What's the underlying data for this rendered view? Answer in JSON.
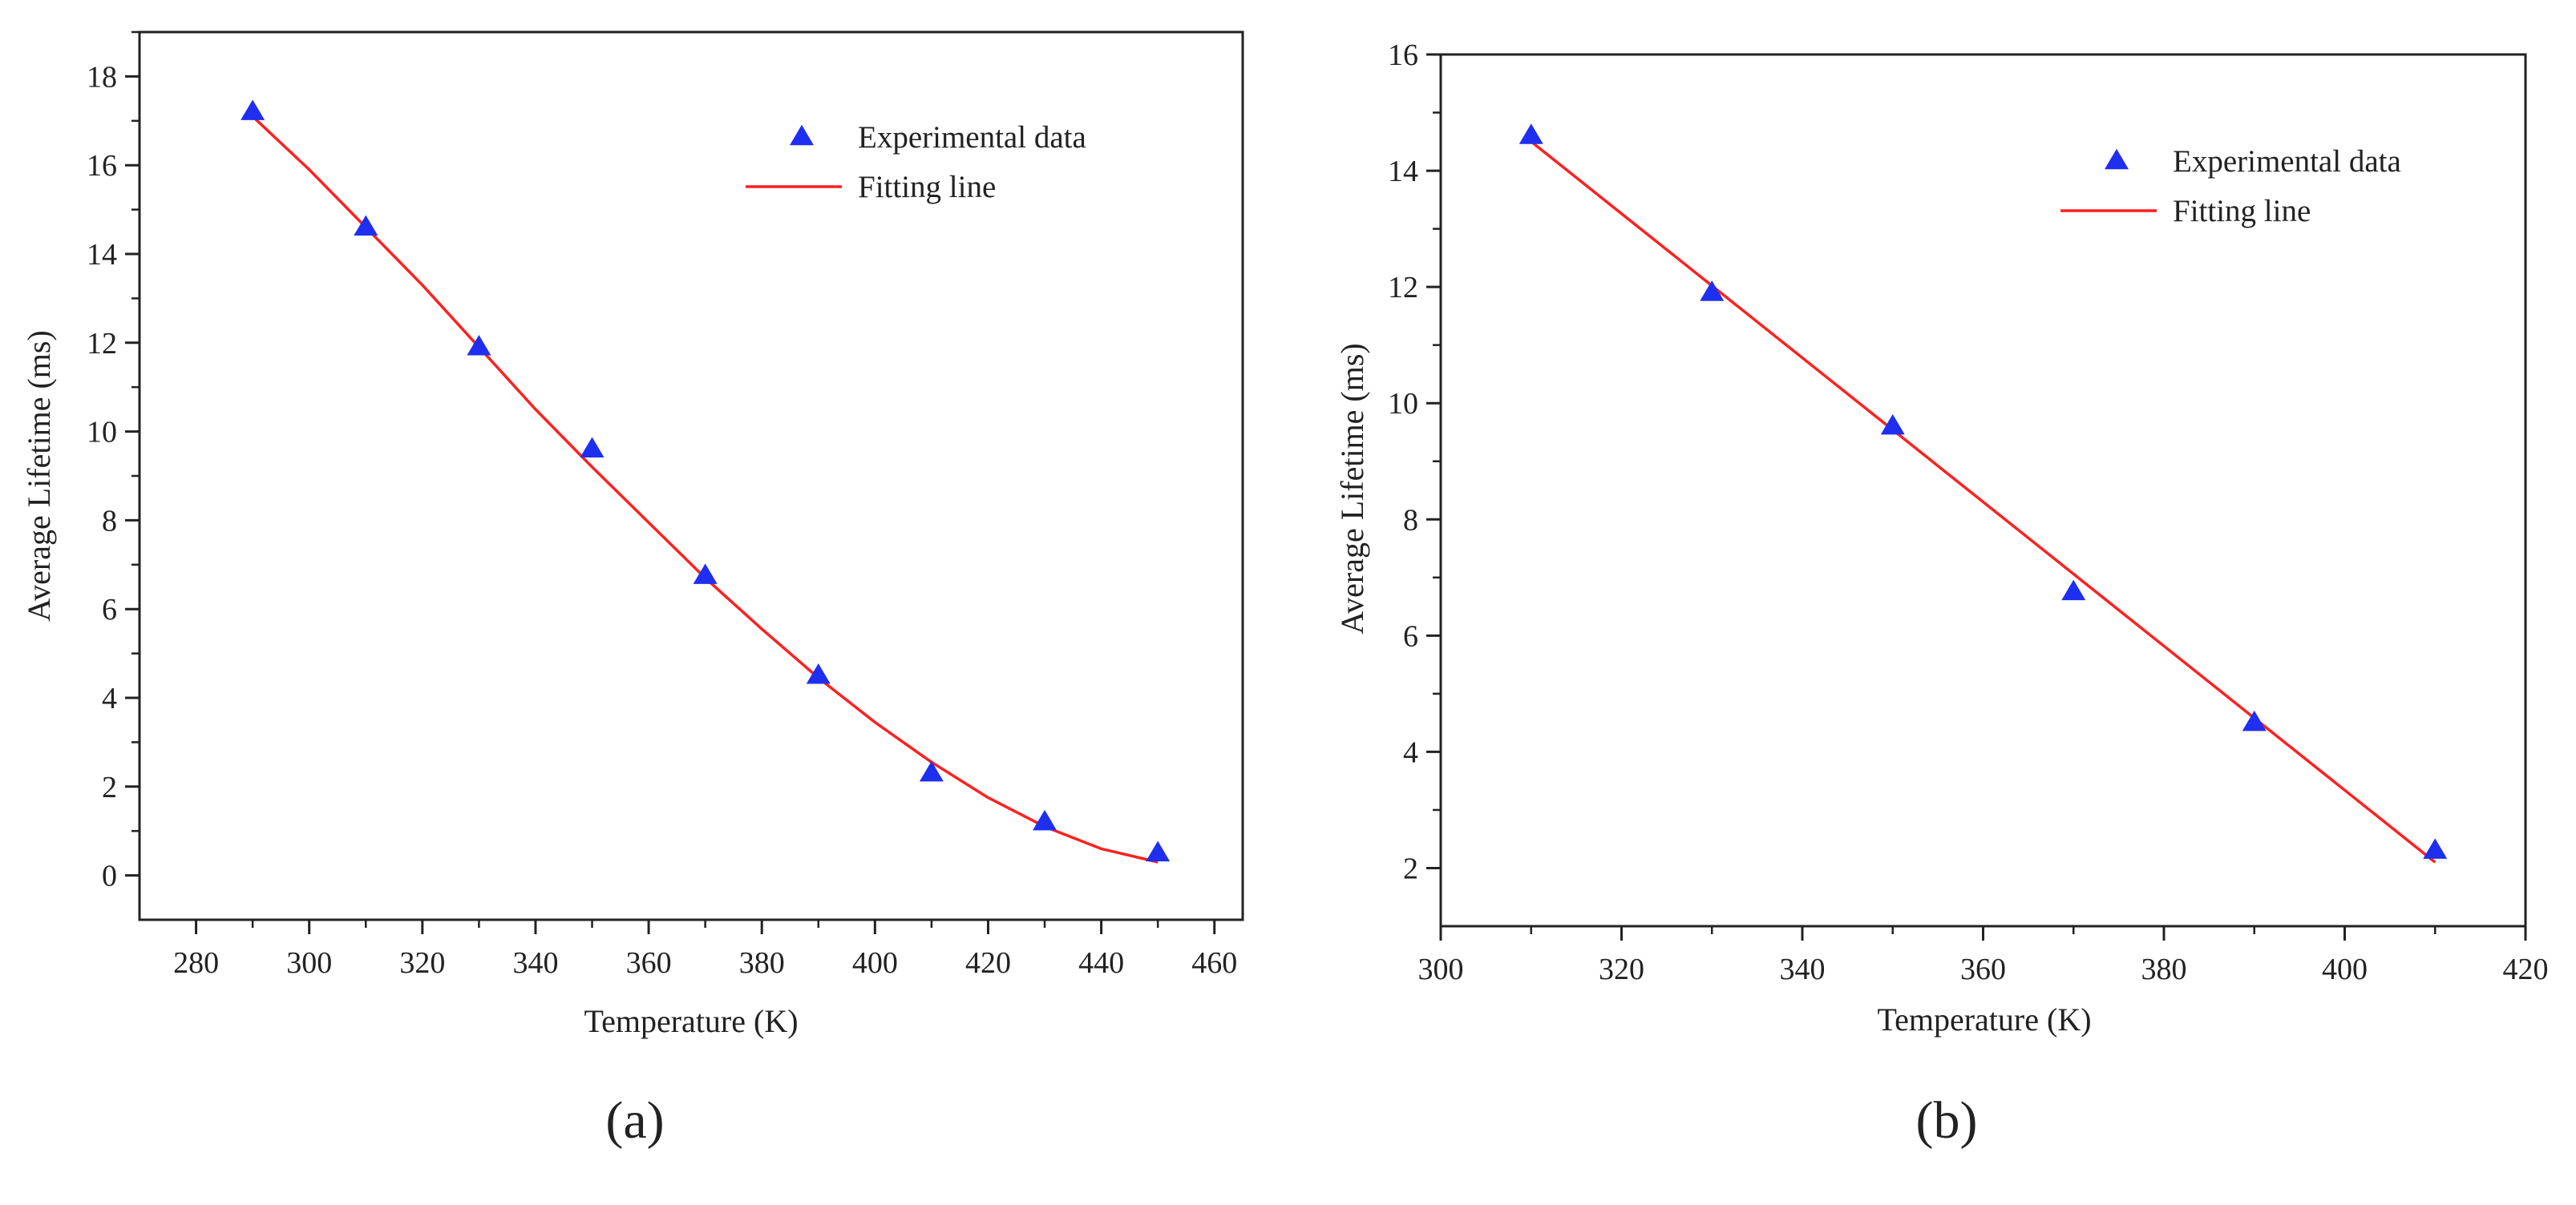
{
  "colors": {
    "marker": "#1f2ff0",
    "fit": "#ff2020",
    "axis": "#222222"
  },
  "captions": [
    "(a)",
    "(b)"
  ],
  "chart_data": [
    {
      "type": "scatter",
      "panel": "(a)",
      "xlabel": "Temperature (K)",
      "ylabel": "Average Lifetime (ms)",
      "xlim": [
        270,
        465
      ],
      "ylim": [
        -1,
        19
      ],
      "xticks": [
        280,
        300,
        320,
        340,
        360,
        380,
        400,
        420,
        440,
        460
      ],
      "yticks": [
        0,
        2,
        4,
        6,
        8,
        10,
        12,
        14,
        16,
        18
      ],
      "legend_position": "top-right",
      "series": [
        {
          "name": "Experimental data",
          "kind": "marker",
          "x": [
            290,
            310,
            330,
            350,
            370,
            390,
            410,
            430,
            450
          ],
          "y": [
            17.2,
            14.6,
            11.9,
            9.6,
            6.75,
            4.5,
            2.3,
            1.2,
            0.5
          ]
        },
        {
          "name": "Fitting line",
          "kind": "line",
          "x": [
            290,
            300,
            310,
            320,
            330,
            340,
            350,
            360,
            370,
            380,
            390,
            400,
            410,
            420,
            430,
            440,
            450
          ],
          "y": [
            17.1,
            15.9,
            14.6,
            13.3,
            11.9,
            10.5,
            9.2,
            7.95,
            6.7,
            5.55,
            4.45,
            3.45,
            2.55,
            1.75,
            1.1,
            0.6,
            0.3
          ]
        }
      ]
    },
    {
      "type": "scatter",
      "panel": "(b)",
      "xlabel": "Temperature (K)",
      "ylabel": "Average Lifetime (ms)",
      "xlim": [
        300,
        420
      ],
      "ylim": [
        1,
        16
      ],
      "xticks": [
        300,
        320,
        340,
        360,
        380,
        400,
        420
      ],
      "yticks": [
        2,
        4,
        6,
        8,
        10,
        12,
        14,
        16
      ],
      "legend_position": "top-right",
      "series": [
        {
          "name": "Experimental data",
          "kind": "marker",
          "x": [
            310,
            330,
            350,
            370,
            390,
            410
          ],
          "y": [
            14.6,
            11.9,
            9.6,
            6.75,
            4.5,
            2.3
          ]
        },
        {
          "name": "Fitting line",
          "kind": "line",
          "x": [
            310,
            410
          ],
          "y": [
            14.5,
            2.1
          ]
        }
      ]
    }
  ]
}
